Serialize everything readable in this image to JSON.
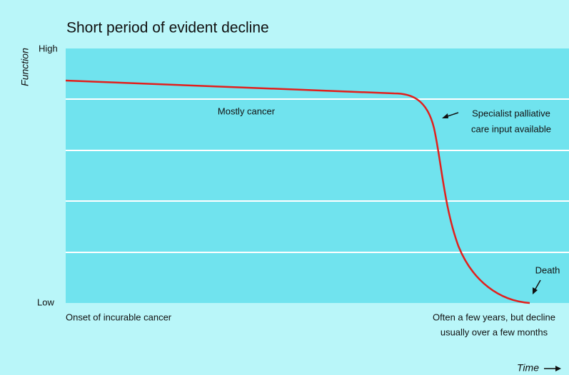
{
  "title": "Short period of evident decline",
  "y_axis": {
    "label": "Function",
    "high": "High",
    "low": "Low"
  },
  "x_axis": {
    "label": "Time"
  },
  "annotations": {
    "group": "Mostly cancer",
    "specialist": [
      "Specialist palliative",
      "care input available"
    ],
    "death": "Death",
    "onset": "Onset of incurable cancer",
    "duration": [
      "Often a few years, but decline",
      "usually over a few months"
    ]
  }
}
